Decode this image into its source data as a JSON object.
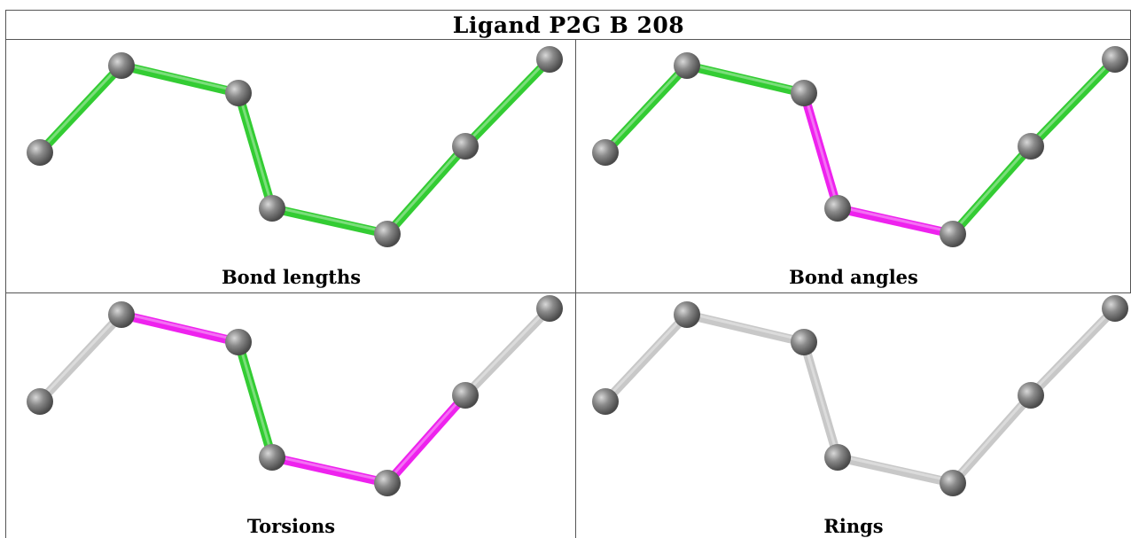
{
  "title": "Ligand P2G B 208",
  "colors": {
    "good": "#33cc33",
    "outlier": "#ee22ee",
    "neutral": "#c8c8c8",
    "atom": "#7a7a7a"
  },
  "panels": [
    {
      "caption": "Bond lengths",
      "bond_status": [
        "good",
        "good",
        "good",
        "good",
        "good",
        "good",
        "good"
      ]
    },
    {
      "caption": "Bond angles",
      "bond_status": [
        "good",
        "good",
        "outlier",
        "outlier",
        "good",
        "good",
        "good"
      ]
    },
    {
      "caption": "Torsions",
      "bond_status": [
        "neutral",
        "outlier",
        "good",
        "outlier",
        "outlier",
        "neutral",
        "neutral"
      ]
    },
    {
      "caption": "Rings",
      "bond_status": [
        "neutral",
        "neutral",
        "neutral",
        "neutral",
        "neutral",
        "neutral",
        "neutral"
      ]
    }
  ]
}
